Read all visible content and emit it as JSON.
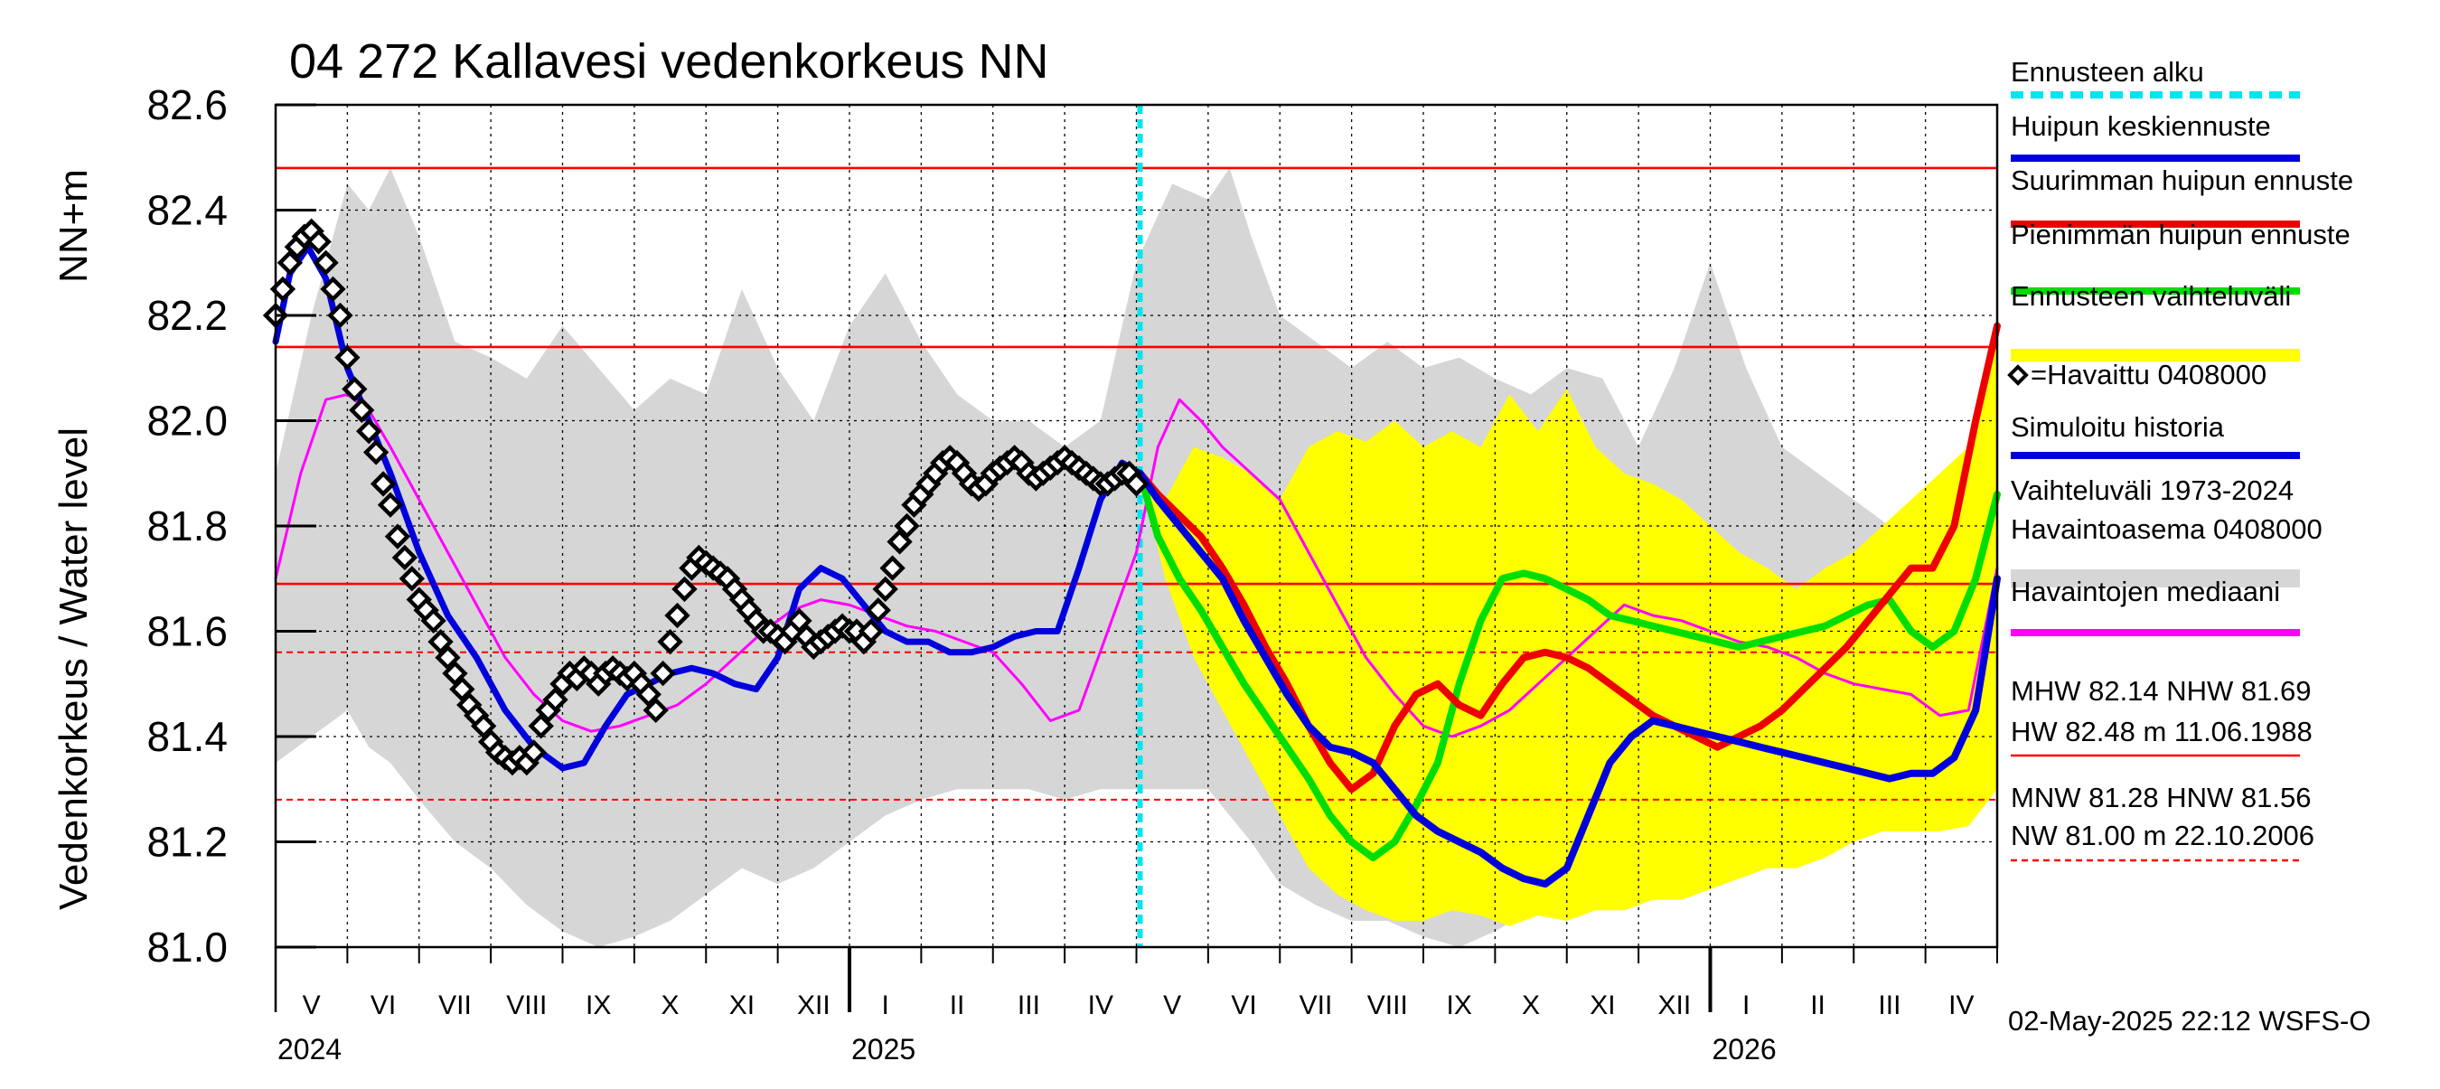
{
  "title": "04 272 Kallavesi vedenkorkeus NN",
  "ylabel_main": "Vedenkorkeus / Water level",
  "ylabel_unit": "NN+m",
  "footer": "02-May-2025 22:12 WSFS-O",
  "colors": {
    "band": "#d6d6d6",
    "forecast_band": "#ffff00",
    "refline": "#ff0000",
    "grid": "#000000",
    "forecast_start": "#00e5ee",
    "mean_forecast": "#0000dd",
    "max_forecast": "#ee0000",
    "min_forecast": "#00dd00",
    "median": "#ff00ff",
    "observed": "#000000"
  },
  "legend": [
    {
      "label": "Ennusteen alku",
      "style": "dashed",
      "color": "#00e5ee"
    },
    {
      "label": "Huipun keskiennuste",
      "style": "solid",
      "color": "#0000dd"
    },
    {
      "label": "Suurimman huipun ennuste",
      "style": "solid",
      "color": "#ee0000"
    },
    {
      "label": "Pienimmän huipun ennuste",
      "style": "solid",
      "color": "#00dd00"
    },
    {
      "label": "Ennusteen vaihteluväli",
      "style": "solid",
      "color": "#ffff00"
    },
    {
      "label": "=Havaittu 0408000",
      "style": "marker",
      "color": "#000000"
    },
    {
      "label": "Simuloitu historia",
      "style": "solid",
      "color": "#0000dd"
    },
    {
      "label": "Vaihteluväli 1973-2024",
      "style": "none",
      "color": "#d6d6d6"
    },
    {
      "label": " Havaintoasema 0408000",
      "style": "solid",
      "color": "#d6d6d6"
    },
    {
      "label": "Havaintojen mediaani",
      "style": "solid",
      "color": "#ff00ff"
    }
  ],
  "stats": [
    {
      "line1": "MHW  82.14 NHW  81.69",
      "line2": "HW  82.48 m 11.06.1988",
      "style": "solid"
    },
    {
      "line1": "MNW  81.28 HNW  81.56",
      "line2": "NW  81.00 m 22.10.2006",
      "style": "dashed"
    }
  ],
  "chart_data": {
    "type": "line",
    "title": "04 272 Kallavesi vedenkorkeus NN",
    "xlabel": "",
    "ylabel": "Vedenkorkeus / Water level NN+m",
    "x_unit": "month index from May 2024 (0 = 1 May 2024)",
    "xlim": [
      0,
      24
    ],
    "ylim": [
      81.0,
      82.6
    ],
    "yticks": [
      81.0,
      81.2,
      81.4,
      81.6,
      81.8,
      82.0,
      82.2,
      82.4,
      82.6
    ],
    "y_tick_labels": [
      "81.0",
      "81.2",
      "81.4",
      "81.6",
      "81.8",
      "82.0",
      "82.2",
      "82.4",
      "82.6"
    ],
    "months": [
      "V",
      "VI",
      "VII",
      "VIII",
      "IX",
      "X",
      "XI",
      "XII",
      "I",
      "II",
      "III",
      "IV",
      "V",
      "VI",
      "VII",
      "VIII",
      "IX",
      "X",
      "XI",
      "XII",
      "I",
      "II",
      "III",
      "IV"
    ],
    "years": [
      {
        "label": "2024",
        "x": 0
      },
      {
        "label": "2025",
        "x": 8
      },
      {
        "label": "2026",
        "x": 20
      }
    ],
    "forecast_start_x": 12.05,
    "reference_lines": [
      {
        "name": "HW",
        "y": 82.48,
        "style": "solid"
      },
      {
        "name": "MHW",
        "y": 82.14,
        "style": "solid"
      },
      {
        "name": "NHW",
        "y": 81.69,
        "style": "solid"
      },
      {
        "name": "HNW",
        "y": 81.56,
        "style": "dashed"
      },
      {
        "name": "MNW",
        "y": 81.28,
        "style": "dashed"
      },
      {
        "name": "NW",
        "y": 81.0,
        "style": "dashed"
      }
    ],
    "variation_band": {
      "name": "Vaihteluväli 1973-2024",
      "x": [
        0,
        0.5,
        1.0,
        1.3,
        1.6,
        2.0,
        2.5,
        3.0,
        3.5,
        4.0,
        4.5,
        5.0,
        5.5,
        6.0,
        6.5,
        7.0,
        7.5,
        8.0,
        8.5,
        9.0,
        9.5,
        10.0,
        10.5,
        11.0,
        11.5,
        12.0,
        12.5,
        13.0,
        13.3,
        13.6,
        14.0,
        14.5,
        15.0,
        15.5,
        16.0,
        16.5,
        17.0,
        17.5,
        18.0,
        18.5,
        19.0,
        19.5,
        20.0,
        20.5,
        21.0,
        21.5,
        22.0,
        22.5,
        23.0,
        23.5,
        24.0
      ],
      "upper": [
        81.9,
        82.2,
        82.45,
        82.4,
        82.48,
        82.35,
        82.15,
        82.12,
        82.08,
        82.18,
        82.1,
        82.02,
        82.08,
        82.05,
        82.25,
        82.1,
        82.0,
        82.18,
        82.28,
        82.15,
        82.05,
        82.0,
        82.0,
        81.95,
        82.0,
        82.3,
        82.45,
        82.42,
        82.48,
        82.35,
        82.2,
        82.15,
        82.1,
        82.15,
        82.1,
        82.12,
        82.08,
        82.05,
        82.1,
        82.08,
        81.95,
        82.1,
        82.3,
        82.1,
        81.95,
        81.9,
        81.85,
        81.8,
        81.85,
        81.8,
        81.78
      ],
      "lower": [
        81.35,
        81.4,
        81.45,
        81.38,
        81.35,
        81.28,
        81.2,
        81.15,
        81.08,
        81.03,
        81.0,
        81.02,
        81.05,
        81.1,
        81.15,
        81.12,
        81.15,
        81.2,
        81.25,
        81.28,
        81.3,
        81.3,
        81.3,
        81.28,
        81.3,
        81.3,
        81.3,
        81.3,
        81.25,
        81.2,
        81.12,
        81.08,
        81.05,
        81.05,
        81.02,
        81.0,
        81.03,
        81.07,
        81.1,
        81.12,
        81.15,
        81.18,
        81.2,
        81.2,
        81.22,
        81.23,
        81.25,
        81.25,
        81.25,
        81.27,
        81.3
      ]
    },
    "forecast_band": {
      "name": "Ennusteen vaihteluväli",
      "x": [
        12.05,
        12.4,
        12.8,
        13.2,
        13.6,
        14.0,
        14.4,
        14.8,
        15.2,
        15.6,
        16.0,
        16.4,
        16.8,
        17.2,
        17.6,
        18.0,
        18.4,
        18.8,
        19.2,
        19.6,
        20.0,
        20.4,
        20.8,
        21.2,
        21.6,
        22.0,
        22.4,
        22.8,
        23.2,
        23.6,
        24.0
      ],
      "upper": [
        81.9,
        81.85,
        81.95,
        81.93,
        81.9,
        81.85,
        81.95,
        81.98,
        81.96,
        82.0,
        81.95,
        81.98,
        81.95,
        82.05,
        81.98,
        82.06,
        81.95,
        81.9,
        81.88,
        81.85,
        81.8,
        81.75,
        81.72,
        81.68,
        81.72,
        81.75,
        81.8,
        81.85,
        81.9,
        81.95,
        82.18
      ],
      "lower": [
        81.9,
        81.7,
        81.55,
        81.45,
        81.35,
        81.25,
        81.15,
        81.1,
        81.07,
        81.05,
        81.05,
        81.07,
        81.06,
        81.04,
        81.06,
        81.05,
        81.07,
        81.07,
        81.09,
        81.09,
        81.11,
        81.13,
        81.15,
        81.15,
        81.17,
        81.2,
        81.22,
        81.22,
        81.22,
        81.23,
        81.3
      ]
    },
    "series": [
      {
        "name": "Havaintojen mediaani",
        "x": [
          0,
          0.35,
          0.7,
          1.0,
          1.3,
          1.6,
          2.0,
          2.4,
          2.8,
          3.2,
          3.6,
          4.0,
          4.4,
          4.8,
          5.2,
          5.6,
          6.0,
          6.4,
          6.8,
          7.2,
          7.6,
          8.0,
          8.4,
          8.8,
          9.2,
          9.6,
          10.0,
          10.4,
          10.8,
          11.2,
          11.6,
          12.0,
          12.3,
          12.6,
          12.9,
          13.2,
          13.6,
          14.0,
          14.4,
          14.8,
          15.2,
          15.6,
          16.0,
          16.4,
          16.8,
          17.2,
          17.6,
          18.0,
          18.4,
          18.8,
          19.2,
          19.6,
          20.0,
          20.4,
          20.8,
          21.2,
          21.6,
          22.0,
          22.4,
          22.8,
          23.2,
          23.6,
          24.0
        ],
        "values": [
          81.7,
          81.9,
          82.04,
          82.05,
          82.02,
          81.95,
          81.85,
          81.75,
          81.65,
          81.55,
          81.48,
          81.43,
          81.41,
          81.42,
          81.44,
          81.46,
          81.5,
          81.55,
          81.6,
          81.64,
          81.66,
          81.65,
          81.63,
          81.61,
          81.6,
          81.58,
          81.56,
          81.5,
          81.43,
          81.45,
          81.6,
          81.75,
          81.95,
          82.04,
          82.0,
          81.95,
          81.9,
          81.85,
          81.75,
          81.65,
          81.55,
          81.48,
          81.42,
          81.4,
          81.42,
          81.45,
          81.5,
          81.55,
          81.6,
          81.65,
          81.63,
          81.62,
          81.6,
          81.58,
          81.57,
          81.55,
          81.52,
          81.5,
          81.49,
          81.48,
          81.44,
          81.45,
          81.72
        ],
        "color": "#ff00ff"
      },
      {
        "name": "Simuloitu historia",
        "x": [
          0,
          0.2,
          0.45,
          0.7,
          1.0,
          1.3,
          1.6,
          2.0,
          2.4,
          2.8,
          3.2,
          3.6,
          4.0,
          4.3,
          4.6,
          4.9,
          5.2,
          5.5,
          5.8,
          6.1,
          6.4,
          6.7,
          7.0,
          7.3,
          7.6,
          7.9,
          8.2,
          8.5,
          8.8,
          9.1,
          9.4,
          9.7,
          10.0,
          10.3,
          10.6,
          10.9,
          11.2,
          11.5,
          11.8,
          12.05
        ],
        "values": [
          82.15,
          82.28,
          82.33,
          82.27,
          82.1,
          82.0,
          81.9,
          81.75,
          81.63,
          81.55,
          81.45,
          81.38,
          81.34,
          81.35,
          81.42,
          81.48,
          81.5,
          81.52,
          81.53,
          81.52,
          81.5,
          81.49,
          81.55,
          81.68,
          81.72,
          81.7,
          81.65,
          81.6,
          81.58,
          81.58,
          81.56,
          81.56,
          81.57,
          81.59,
          81.6,
          81.6,
          81.72,
          81.85,
          81.92,
          81.9
        ],
        "color": "#0000dd"
      },
      {
        "name": "Huipun keskiennuste",
        "x": [
          12.05,
          12.3,
          12.6,
          12.9,
          13.2,
          13.5,
          13.8,
          14.1,
          14.4,
          14.7,
          15.0,
          15.3,
          15.6,
          15.9,
          16.2,
          16.5,
          16.8,
          17.1,
          17.4,
          17.7,
          18.0,
          18.3,
          18.6,
          18.9,
          19.2,
          19.5,
          19.8,
          20.1,
          20.4,
          20.7,
          21.0,
          21.3,
          21.6,
          21.9,
          22.2,
          22.5,
          22.8,
          23.1,
          23.4,
          23.7,
          24.0
        ],
        "values": [
          81.9,
          81.85,
          81.8,
          81.75,
          81.7,
          81.62,
          81.55,
          81.48,
          81.42,
          81.38,
          81.37,
          81.35,
          81.3,
          81.25,
          81.22,
          81.2,
          81.18,
          81.15,
          81.13,
          81.12,
          81.15,
          81.25,
          81.35,
          81.4,
          81.43,
          81.42,
          81.41,
          81.4,
          81.39,
          81.38,
          81.37,
          81.36,
          81.35,
          81.34,
          81.33,
          81.32,
          81.33,
          81.33,
          81.36,
          81.45,
          81.7
        ],
        "color": "#0000dd"
      },
      {
        "name": "Suurimman huipun ennuste",
        "x": [
          12.05,
          12.3,
          12.6,
          12.9,
          13.2,
          13.5,
          13.8,
          14.1,
          14.4,
          14.7,
          15.0,
          15.3,
          15.6,
          15.9,
          16.2,
          16.5,
          16.8,
          17.1,
          17.4,
          17.7,
          18.0,
          18.3,
          18.6,
          18.9,
          19.2,
          19.5,
          19.8,
          20.1,
          20.4,
          20.7,
          21.0,
          21.3,
          21.6,
          21.9,
          22.2,
          22.5,
          22.8,
          23.1,
          23.4,
          23.7,
          24.0
        ],
        "values": [
          81.9,
          81.86,
          81.82,
          81.78,
          81.72,
          81.65,
          81.57,
          81.5,
          81.42,
          81.35,
          81.3,
          81.33,
          81.42,
          81.48,
          81.5,
          81.46,
          81.44,
          81.5,
          81.55,
          81.56,
          81.55,
          81.53,
          81.5,
          81.47,
          81.44,
          81.42,
          81.4,
          81.38,
          81.4,
          81.42,
          81.45,
          81.49,
          81.53,
          81.57,
          81.62,
          81.67,
          81.72,
          81.72,
          81.8,
          82.0,
          82.18
        ],
        "color": "#ee0000"
      },
      {
        "name": "Pienimmän huipun ennuste",
        "x": [
          12.05,
          12.3,
          12.6,
          12.9,
          13.2,
          13.5,
          13.8,
          14.1,
          14.4,
          14.7,
          15.0,
          15.3,
          15.6,
          15.9,
          16.2,
          16.5,
          16.8,
          17.1,
          17.4,
          17.7,
          18.0,
          18.3,
          18.6,
          18.9,
          19.2,
          19.5,
          19.8,
          20.1,
          20.4,
          20.7,
          21.0,
          21.3,
          21.6,
          21.9,
          22.2,
          22.5,
          22.8,
          23.1,
          23.4,
          23.7,
          24.0
        ],
        "values": [
          81.9,
          81.78,
          81.7,
          81.64,
          81.57,
          81.5,
          81.44,
          81.38,
          81.32,
          81.25,
          81.2,
          81.17,
          81.2,
          81.27,
          81.35,
          81.5,
          81.62,
          81.7,
          81.71,
          81.7,
          81.68,
          81.66,
          81.63,
          81.62,
          81.61,
          81.6,
          81.59,
          81.58,
          81.57,
          81.58,
          81.59,
          81.6,
          81.61,
          81.63,
          81.65,
          81.66,
          81.6,
          81.57,
          81.6,
          81.7,
          81.86
        ],
        "color": "#00dd00"
      },
      {
        "name": "Havaittu 0408000",
        "type": "markers",
        "x": [
          0,
          0.1,
          0.2,
          0.3,
          0.4,
          0.5,
          0.6,
          0.7,
          0.8,
          0.9,
          1.0,
          1.1,
          1.2,
          1.3,
          1.4,
          1.5,
          1.6,
          1.7,
          1.8,
          1.9,
          2.0,
          2.1,
          2.2,
          2.3,
          2.4,
          2.5,
          2.6,
          2.7,
          2.8,
          2.9,
          3.0,
          3.1,
          3.2,
          3.3,
          3.4,
          3.5,
          3.6,
          3.7,
          3.8,
          3.9,
          4.0,
          4.1,
          4.2,
          4.3,
          4.4,
          4.5,
          4.6,
          4.7,
          4.8,
          4.9,
          5.0,
          5.1,
          5.2,
          5.3,
          5.4,
          5.5,
          5.6,
          5.7,
          5.8,
          5.9,
          6.0,
          6.1,
          6.2,
          6.3,
          6.4,
          6.5,
          6.6,
          6.7,
          6.8,
          6.9,
          7.0,
          7.1,
          7.2,
          7.3,
          7.4,
          7.5,
          7.6,
          7.7,
          7.8,
          7.9,
          8.0,
          8.1,
          8.2,
          8.3,
          8.4,
          8.5,
          8.6,
          8.7,
          8.8,
          8.9,
          9.0,
          9.1,
          9.2,
          9.3,
          9.4,
          9.5,
          9.6,
          9.7,
          9.8,
          9.9,
          10.0,
          10.1,
          10.2,
          10.3,
          10.4,
          10.5,
          10.6,
          10.7,
          10.8,
          10.9,
          11.0,
          11.1,
          11.2,
          11.3,
          11.4,
          11.5,
          11.6,
          11.7,
          11.8,
          11.9,
          12.0
        ],
        "values": [
          82.2,
          82.25,
          82.3,
          82.33,
          82.35,
          82.36,
          82.34,
          82.3,
          82.25,
          82.2,
          82.12,
          82.06,
          82.02,
          81.98,
          81.94,
          81.88,
          81.84,
          81.78,
          81.74,
          81.7,
          81.66,
          81.64,
          81.62,
          81.58,
          81.55,
          81.52,
          81.49,
          81.46,
          81.44,
          81.42,
          81.39,
          81.37,
          81.36,
          81.35,
          81.36,
          81.35,
          81.37,
          81.42,
          81.45,
          81.47,
          81.5,
          81.52,
          81.51,
          81.53,
          81.52,
          81.5,
          81.52,
          81.53,
          81.52,
          81.51,
          81.52,
          81.5,
          81.48,
          81.45,
          81.52,
          81.58,
          81.63,
          81.68,
          81.72,
          81.74,
          81.73,
          81.72,
          81.71,
          81.7,
          81.68,
          81.66,
          81.64,
          81.62,
          81.6,
          81.6,
          81.59,
          81.58,
          81.6,
          81.62,
          81.59,
          81.57,
          81.58,
          81.59,
          81.6,
          81.61,
          81.6,
          81.6,
          81.58,
          81.6,
          81.64,
          81.68,
          81.72,
          81.77,
          81.8,
          81.84,
          81.86,
          81.88,
          81.9,
          81.92,
          81.93,
          81.92,
          81.9,
          81.88,
          81.87,
          81.88,
          81.9,
          81.91,
          81.92,
          81.93,
          81.92,
          81.9,
          81.89,
          81.9,
          81.91,
          81.92,
          81.93,
          81.92,
          81.91,
          81.9,
          81.89,
          81.88,
          81.88,
          81.89,
          81.9,
          81.9,
          81.88
        ],
        "color": "#000000"
      }
    ]
  }
}
